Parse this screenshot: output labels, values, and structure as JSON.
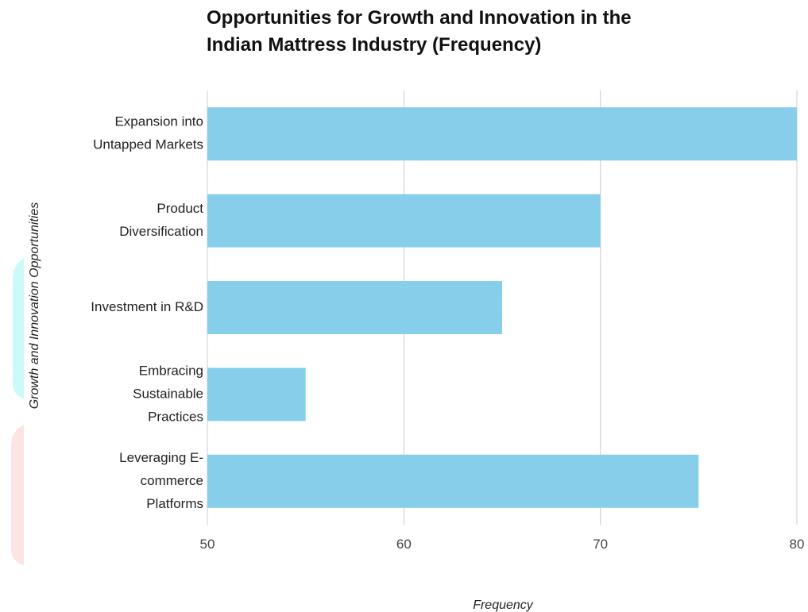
{
  "chart_data": {
    "type": "bar",
    "orientation": "horizontal",
    "title_lines": [
      "Opportunities for Growth and Innovation in the",
      "Indian Mattress Industry (Frequency)"
    ],
    "categories": [
      [
        "Expansion into",
        "Untapped Markets"
      ],
      [
        "Product",
        "Diversification"
      ],
      [
        "Investment in R&D"
      ],
      [
        "Embracing",
        "Sustainable",
        "Practices"
      ],
      [
        "Leveraging E-",
        "commerce",
        "Platforms"
      ]
    ],
    "values": [
      80,
      70,
      65,
      55,
      75
    ],
    "xlabel": "Frequency",
    "ylabel": "Growth and Innovation Opportunities",
    "xlim": [
      50,
      80
    ],
    "xticks": [
      50,
      60,
      70,
      80
    ],
    "grid": true,
    "bar_color": "#87ceeb",
    "grid_color": "#cccccc"
  }
}
